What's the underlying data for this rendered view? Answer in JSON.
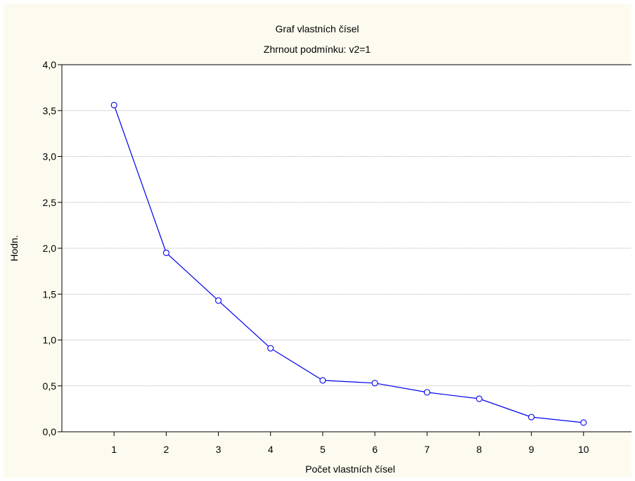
{
  "chart_data": {
    "type": "line",
    "title": "Graf vlastních čísel",
    "subtitle": "Zhrnout podmínku: v2=1",
    "xlabel": "Počet vlastních čísel",
    "ylabel": "Hodn.",
    "x": [
      1,
      2,
      3,
      4,
      5,
      6,
      7,
      8,
      9,
      10
    ],
    "series": [
      {
        "values": [
          3.56,
          1.95,
          1.43,
          0.91,
          0.56,
          0.53,
          0.43,
          0.36,
          0.16,
          0.1
        ]
      }
    ],
    "x_ticks": [
      "1",
      "2",
      "3",
      "4",
      "5",
      "6",
      "7",
      "8",
      "9",
      "10"
    ],
    "y_ticks": [
      "0,0",
      "0,5",
      "1,0",
      "1,5",
      "2,0",
      "2,5",
      "3,0",
      "3,5",
      "4,0"
    ],
    "y_tick_values": [
      0,
      0.5,
      1.0,
      1.5,
      2.0,
      2.5,
      3.0,
      3.5,
      4.0
    ],
    "xlim": [
      0,
      11
    ],
    "ylim": [
      0,
      4
    ],
    "grid": "horizontal dotted",
    "line_color": "#0000ee",
    "marker": "open-circle",
    "background_color": "#fdfbef",
    "plot_background_color": "#ffffff"
  }
}
